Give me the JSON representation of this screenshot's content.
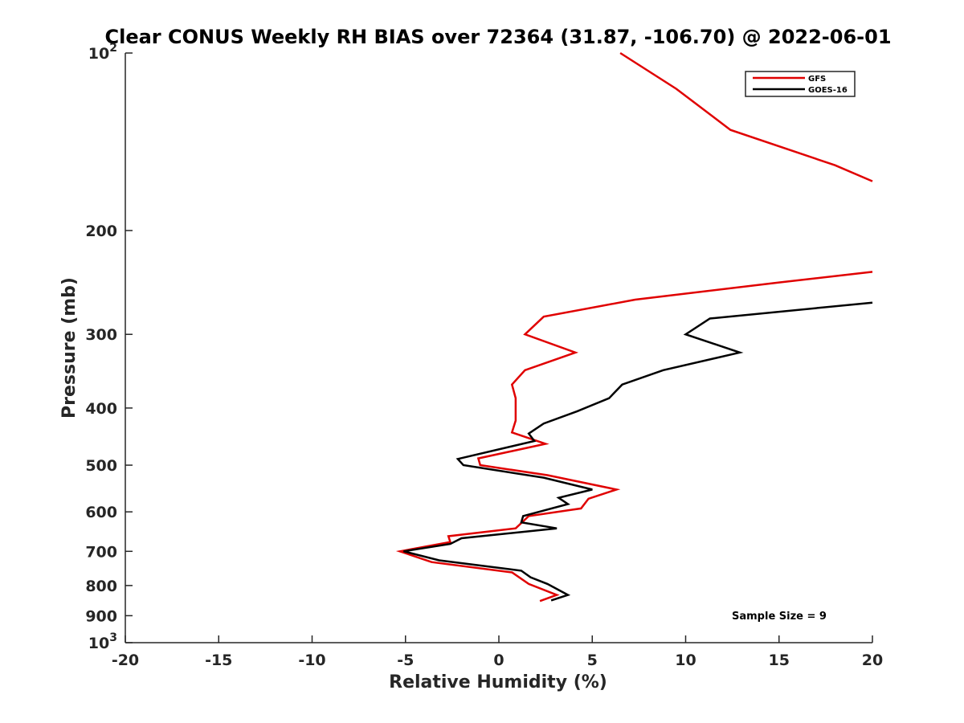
{
  "chart_data": {
    "type": "line",
    "title": "Clear CONUS Weekly RH BIAS over 72364 (31.87, -106.70) @ 2022-06-01",
    "xlabel": "Relative Humidity (%)",
    "ylabel": "Pressure (mb)",
    "xlim": [
      -20,
      20
    ],
    "ylim": [
      100,
      1000
    ],
    "y_scale": "log",
    "y_reversed": true,
    "grid": false,
    "legend_position": "top-right",
    "x_ticks": [
      -20,
      -15,
      -10,
      -5,
      0,
      5,
      10,
      15,
      20
    ],
    "x_tick_labels": [
      "-20",
      "-15",
      "-10",
      "-5",
      "0",
      "5",
      "10",
      "15",
      "20"
    ],
    "y_ticks": [
      100,
      200,
      300,
      400,
      500,
      600,
      700,
      800,
      900,
      1000
    ],
    "y_tick_labels": [
      {
        "base": "10",
        "exp": "2"
      },
      {
        "base": "200",
        "exp": ""
      },
      {
        "base": "300",
        "exp": ""
      },
      {
        "base": "400",
        "exp": ""
      },
      {
        "base": "500",
        "exp": ""
      },
      {
        "base": "600",
        "exp": ""
      },
      {
        "base": "700",
        "exp": ""
      },
      {
        "base": "800",
        "exp": ""
      },
      {
        "base": "900",
        "exp": ""
      },
      {
        "base": "10",
        "exp": "3"
      }
    ],
    "annotation": "Sample Size = 9",
    "series": [
      {
        "name": "GFS",
        "color": "#e00000",
        "points": [
          [
            6.5,
            100
          ],
          [
            9.5,
            115
          ],
          [
            12.4,
            135
          ],
          [
            18.0,
            155
          ],
          [
            20.0,
            165
          ],
          [
            null,
            null
          ],
          [
            20.0,
            235
          ],
          [
            15.0,
            245
          ],
          [
            7.3,
            262
          ],
          [
            2.4,
            280
          ],
          [
            1.4,
            300
          ],
          [
            4.1,
            322
          ],
          [
            1.4,
            345
          ],
          [
            0.7,
            365
          ],
          [
            0.9,
            385
          ],
          [
            0.9,
            400
          ],
          [
            0.9,
            420
          ],
          [
            0.7,
            440
          ],
          [
            2.5,
            460
          ],
          [
            -1.1,
            487
          ],
          [
            -1.0,
            500
          ],
          [
            2.6,
            520
          ],
          [
            6.3,
            550
          ],
          [
            4.8,
            570
          ],
          [
            4.4,
            592
          ],
          [
            1.6,
            610
          ],
          [
            0.9,
            640
          ],
          [
            -2.7,
            660
          ],
          [
            -2.6,
            675
          ],
          [
            -5.3,
            700
          ],
          [
            -3.6,
            730
          ],
          [
            0.7,
            760
          ],
          [
            1.6,
            795
          ],
          [
            3.1,
            830
          ],
          [
            2.2,
            850
          ]
        ]
      },
      {
        "name": "GOES-16",
        "color": "#000000",
        "points": [
          [
            20.0,
            265
          ],
          [
            11.3,
            282
          ],
          [
            10.0,
            300
          ],
          [
            12.9,
            322
          ],
          [
            8.8,
            345
          ],
          [
            6.6,
            365
          ],
          [
            5.9,
            385
          ],
          [
            4.2,
            405
          ],
          [
            2.4,
            425
          ],
          [
            1.6,
            442
          ],
          [
            1.9,
            455
          ],
          [
            -2.2,
            488
          ],
          [
            -1.9,
            500
          ],
          [
            2.4,
            525
          ],
          [
            5.0,
            550
          ],
          [
            3.2,
            568
          ],
          [
            3.7,
            582
          ],
          [
            1.3,
            610
          ],
          [
            1.2,
            625
          ],
          [
            3.1,
            640
          ],
          [
            -2.0,
            665
          ],
          [
            -2.6,
            680
          ],
          [
            -5.1,
            700
          ],
          [
            -3.2,
            725
          ],
          [
            1.2,
            755
          ],
          [
            1.7,
            775
          ],
          [
            2.6,
            795
          ],
          [
            3.7,
            830
          ],
          [
            2.8,
            848
          ]
        ]
      }
    ]
  }
}
